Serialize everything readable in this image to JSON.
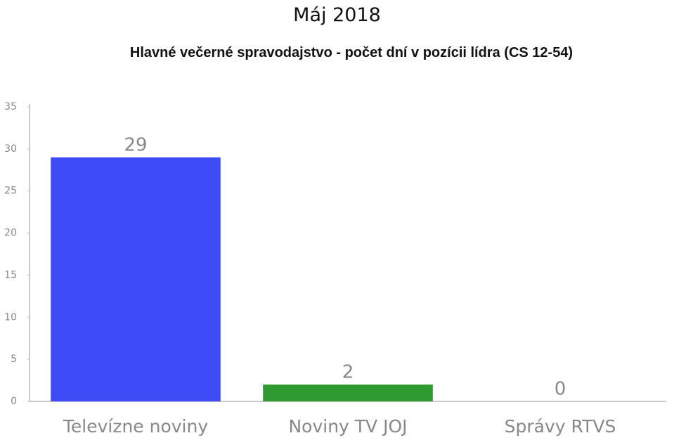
{
  "chart_data": {
    "type": "bar",
    "title": "Máj 2018",
    "subtitle": "Hlavné večerné spravodajstvo - počet dní v pozícii lídra (CS 12-54)",
    "categories": [
      "Televízne noviny",
      "Noviny TV JOJ",
      "Správy RTVS"
    ],
    "values": [
      29,
      2,
      0
    ],
    "colors": [
      "#3d4cf6",
      "#2e9a2f"
    ],
    "ylim": [
      0,
      35
    ],
    "yticks": [
      0,
      5,
      10,
      15,
      20,
      25,
      30,
      35
    ]
  }
}
